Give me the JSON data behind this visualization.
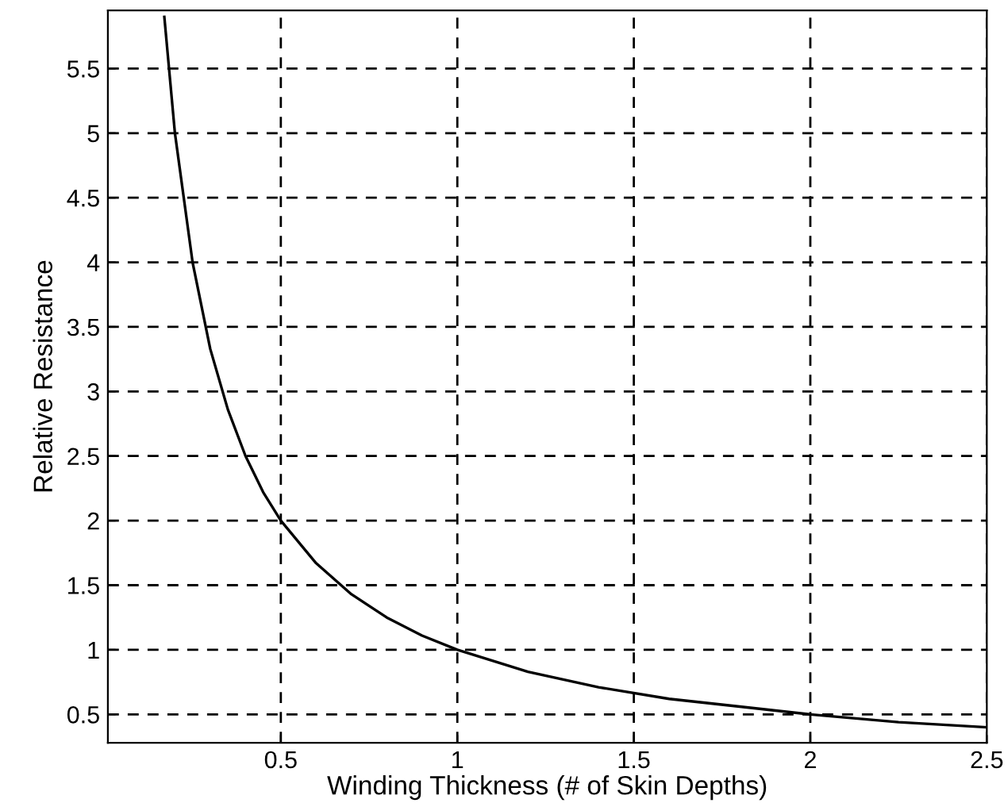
{
  "chart_data": {
    "type": "line",
    "xlabel": "Winding Thickness (# of Skin Depths)",
    "ylabel": "Relative Resistance",
    "series": [
      {
        "color": "#000000",
        "x": [
          0.17,
          0.2,
          0.25,
          0.3,
          0.35,
          0.4,
          0.45,
          0.5,
          0.6,
          0.7,
          0.8,
          0.9,
          1,
          1.2,
          1.4,
          1.6,
          1.8,
          2,
          2.25,
          2.5
        ],
        "values": [
          5.9,
          5,
          4,
          3.33,
          2.86,
          2.5,
          2.22,
          2,
          1.67,
          1.43,
          1.25,
          1.11,
          1,
          0.83,
          0.71,
          0.62,
          0.56,
          0.5,
          0.44,
          0.4
        ]
      }
    ],
    "xlim": [
      0.01,
      2.5
    ],
    "ylim": [
      0.28,
      5.95
    ],
    "xticks": [
      0.5,
      1,
      1.5,
      2,
      2.5
    ],
    "yticks": [
      0.5,
      1,
      1.5,
      2,
      2.5,
      3,
      3.5,
      4,
      4.5,
      5,
      5.5
    ],
    "grid": true,
    "line_style": "solid",
    "marker": "none"
  }
}
